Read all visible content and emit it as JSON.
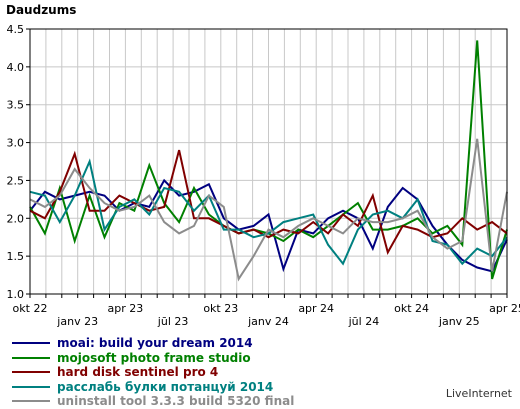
{
  "chart_data": {
    "type": "line",
    "title": "Daudzums",
    "ylim": [
      1.0,
      4.5
    ],
    "y_ticks": [
      "1.0",
      "1.5",
      "2.0",
      "2.5",
      "3.0",
      "3.5",
      "4.0",
      "4.5"
    ],
    "x_tick_labels_top": [
      "okt 22",
      "apr 23",
      "okt 23",
      "apr 24",
      "okt 24",
      "apr 25"
    ],
    "x_tick_labels_bottom": [
      "janv 23",
      "jūl 23",
      "janv 24",
      "jūl 24",
      "janv 25"
    ],
    "x_tick_count": 31,
    "grid": true,
    "legend_placement": "bottom",
    "series": [
      {
        "name": "moai: build your dream 2014",
        "color": "#000080",
        "values": [
          2.1,
          2.35,
          2.25,
          2.3,
          2.35,
          2.3,
          2.1,
          2.2,
          2.15,
          2.5,
          2.3,
          2.35,
          2.45,
          2.0,
          1.85,
          1.9,
          2.05,
          1.33,
          1.85,
          1.8,
          2.0,
          2.1,
          2.0,
          1.6,
          2.15,
          2.4,
          2.25,
          1.9,
          1.65,
          1.45,
          1.35,
          1.3,
          1.72
        ]
      },
      {
        "name": "mojosoft photo frame studio",
        "color": "#008000",
        "values": [
          2.15,
          1.8,
          2.4,
          1.7,
          2.3,
          1.75,
          2.2,
          2.1,
          2.7,
          2.2,
          1.95,
          2.4,
          2.05,
          1.9,
          1.8,
          1.85,
          1.8,
          1.7,
          1.85,
          1.75,
          1.9,
          2.05,
          2.2,
          1.85,
          1.85,
          1.9,
          2.0,
          1.8,
          1.9,
          1.65,
          4.35,
          1.2,
          1.85
        ]
      },
      {
        "name": "hard disk sentinel pro 4",
        "color": "#800000",
        "values": [
          2.1,
          2.0,
          2.35,
          2.85,
          2.1,
          2.1,
          2.3,
          2.2,
          2.1,
          2.15,
          2.9,
          2.0,
          2.0,
          1.9,
          1.8,
          1.85,
          1.75,
          1.85,
          1.8,
          1.95,
          1.8,
          2.05,
          1.9,
          2.3,
          1.55,
          1.9,
          1.85,
          1.75,
          1.8,
          2.0,
          1.85,
          1.95,
          1.8
        ]
      },
      {
        "name": "расслабь булки потанцуй 2014",
        "color": "#008080",
        "values": [
          2.35,
          2.3,
          1.95,
          2.3,
          2.75,
          1.85,
          2.15,
          2.25,
          2.05,
          2.4,
          2.35,
          2.1,
          2.3,
          1.85,
          1.85,
          1.75,
          1.8,
          1.95,
          2.0,
          2.05,
          1.65,
          1.4,
          1.85,
          2.05,
          2.1,
          2.0,
          2.25,
          1.7,
          1.65,
          1.4,
          1.6,
          1.5,
          1.75
        ]
      },
      {
        "name": "uninstall tool 3.3.3 build 5320 final",
        "color": "#8c8c8c",
        "values": [
          2.25,
          2.15,
          2.3,
          2.65,
          2.4,
          2.2,
          2.1,
          2.15,
          2.3,
          1.95,
          1.8,
          1.9,
          2.3,
          2.15,
          1.2,
          1.5,
          1.85,
          1.75,
          1.9,
          2.0,
          1.9,
          1.8,
          2.0,
          1.95,
          1.95,
          2.0,
          2.1,
          1.75,
          1.6,
          1.7,
          3.05,
          1.3,
          2.35
        ]
      }
    ]
  },
  "brand": "LiveInternet"
}
